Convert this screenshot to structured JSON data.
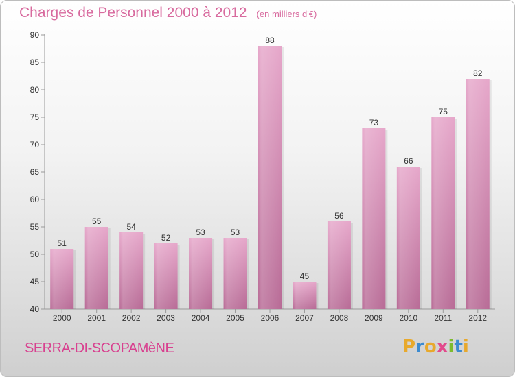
{
  "title": "Charges de Personnel 2000 à 2012",
  "unit_note": "(en milliers d'€)",
  "city": "SERRA-DI-SCOPAMèNE",
  "logo": {
    "text": "Proxiti",
    "letter_colors": [
      "#e8a92c",
      "#3c8bd0",
      "#e8a92c",
      "#e24a8c",
      "#7dbb2e",
      "#3c8bd0",
      "#e8a92c"
    ]
  },
  "colors": {
    "title": "#d86a9e",
    "bar": "#d27ba7",
    "city": "#d8408f"
  },
  "chart_data": {
    "type": "bar",
    "title": "Charges de Personnel 2000 à 2012",
    "categories": [
      "2000",
      "2001",
      "2002",
      "2003",
      "2004",
      "2005",
      "2006",
      "2007",
      "2008",
      "2009",
      "2010",
      "2011",
      "2012"
    ],
    "values": [
      51,
      55,
      54,
      52,
      53,
      53,
      88,
      45,
      56,
      73,
      66,
      75,
      82
    ],
    "ylim": [
      40,
      90
    ],
    "yticks": [
      40,
      45,
      50,
      55,
      60,
      65,
      70,
      75,
      80,
      85,
      90
    ],
    "xlabel": "",
    "ylabel": "",
    "grid": false,
    "data_labels": true
  }
}
